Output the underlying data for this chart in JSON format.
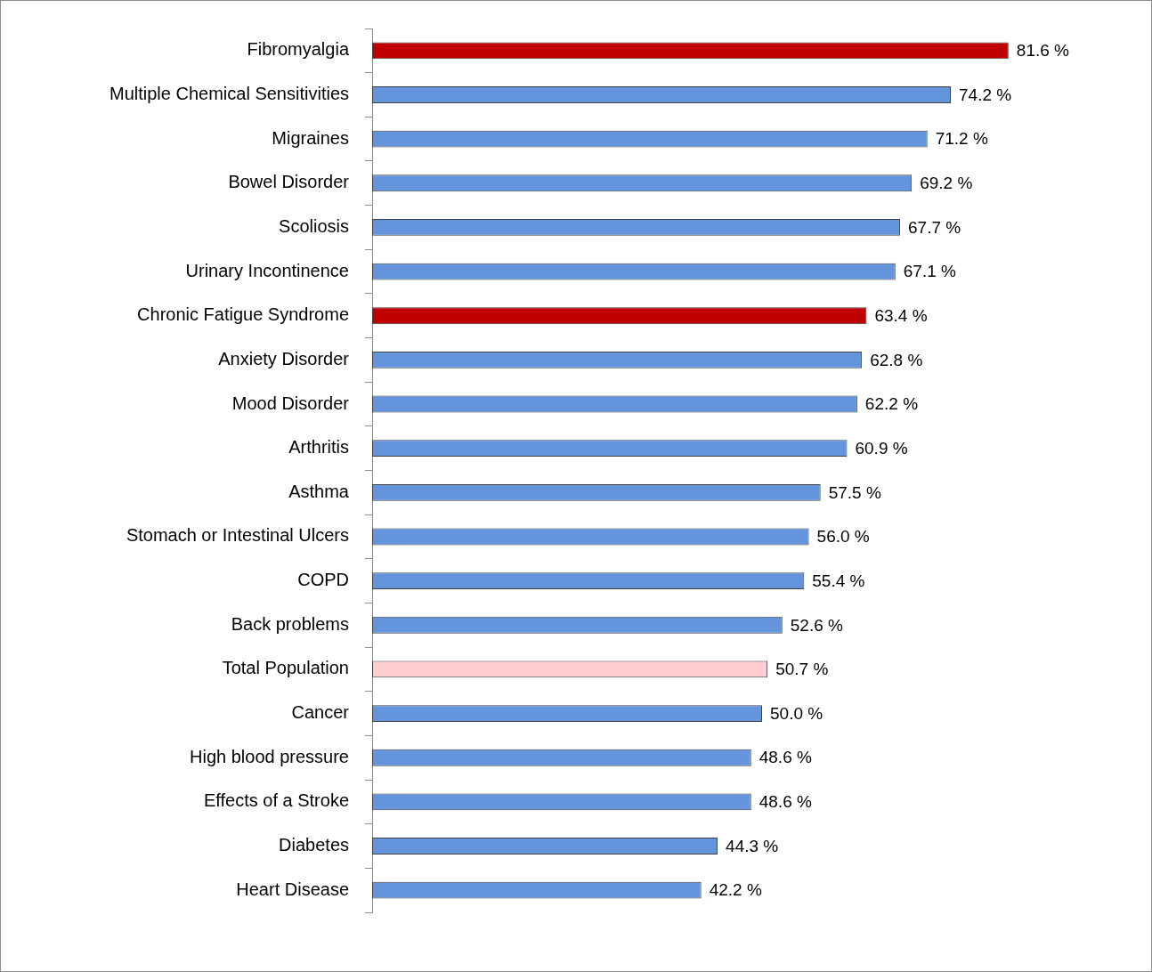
{
  "chart_data": {
    "type": "bar",
    "orientation": "horizontal",
    "categories": [
      "Fibromyalgia",
      "Multiple Chemical Sensitivities",
      "Migraines",
      "Bowel Disorder",
      "Scoliosis",
      "Urinary Incontinence",
      "Chronic Fatigue Syndrome",
      "Anxiety Disorder",
      "Mood Disorder",
      "Arthritis",
      "Asthma",
      "Stomach or Intestinal Ulcers",
      "COPD",
      "Back problems",
      "Total Population",
      "Cancer",
      "High blood pressure",
      "Effects of a Stroke",
      "Diabetes",
      "Heart Disease"
    ],
    "values": [
      81.6,
      74.2,
      71.2,
      69.2,
      67.7,
      67.1,
      63.4,
      62.8,
      62.2,
      60.9,
      57.5,
      56.0,
      55.4,
      52.6,
      50.7,
      50.0,
      48.6,
      48.6,
      44.3,
      42.2
    ],
    "value_labels": [
      "81.6 %",
      "74.2 %",
      "71.2 %",
      "69.2 %",
      "67.7 %",
      "67.1 %",
      "63.4 %",
      "62.8 %",
      "62.2 %",
      "60.9 %",
      "57.5 %",
      "56.0 %",
      "55.4 %",
      "52.6 %",
      "50.7 %",
      "50.0 %",
      "48.6 %",
      "48.6 %",
      "44.3 %",
      "42.2 %"
    ],
    "colors": [
      "#c00000",
      "#6495dc",
      "#6495dc",
      "#6495dc",
      "#6495dc",
      "#6495dc",
      "#c00000",
      "#6495dc",
      "#6495dc",
      "#6495dc",
      "#6495dc",
      "#6495dc",
      "#6495dc",
      "#6495dc",
      "#ffccd0",
      "#6495dc",
      "#6495dc",
      "#6495dc",
      "#6495dc",
      "#6495dc"
    ],
    "xlim": [
      0,
      100
    ],
    "tick_labels": "y"
  }
}
